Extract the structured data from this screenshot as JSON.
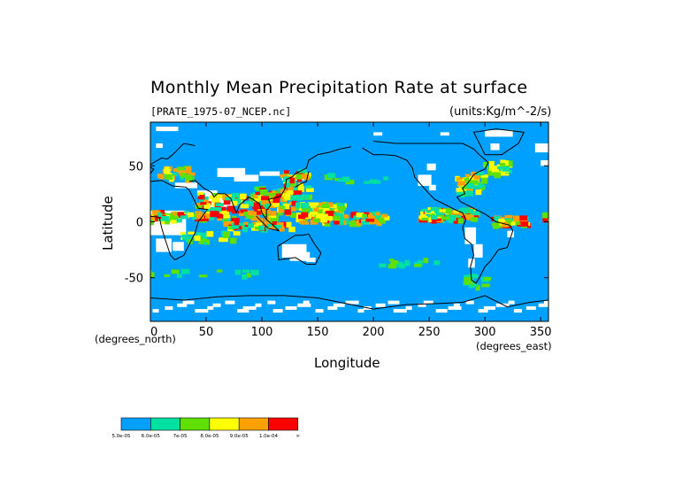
{
  "chart_data": {
    "type": "heatmap",
    "title": "Monthly Mean Precipitation Rate at surface",
    "subtitle_left": "[PRATE_1975-07_NCEP.nc]",
    "subtitle_right": "(units:Kg/m^-2/s)",
    "xlabel": "Longitude",
    "ylabel": "Latitude",
    "x_note": "(degrees_north)",
    "y_note": "(degrees_east)",
    "xlim": [
      0,
      357
    ],
    "ylim": [
      -89,
      89
    ],
    "x_ticks": [
      "0",
      "50",
      "100",
      "150",
      "200",
      "250",
      "300",
      "350"
    ],
    "y_ticks": [
      "50",
      "0",
      "-50"
    ],
    "colorbar": {
      "colors": [
        "#00a0ff",
        "#00e0a0",
        "#60e000",
        "#ffff00",
        "#ffa000",
        "#ff0000"
      ],
      "labels": [
        "5.0e-05",
        "6.0e-05",
        "7e-05",
        "8.0e-05",
        "9.0e-05",
        "1.0e-04",
        "∞"
      ]
    }
  }
}
